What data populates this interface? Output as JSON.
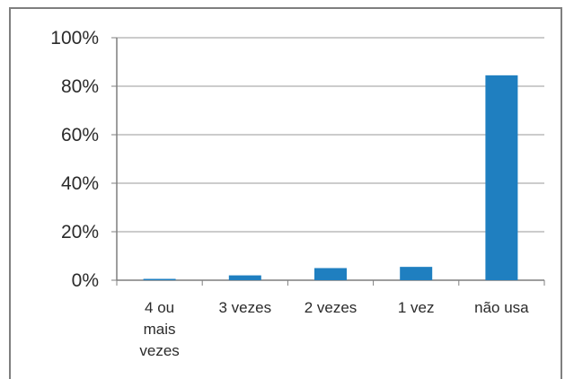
{
  "chart_data": {
    "type": "bar",
    "title": "",
    "xlabel": "",
    "ylabel": "",
    "categories": [
      [
        "4 ou",
        "mais",
        "vezes"
      ],
      [
        "3 vezes"
      ],
      [
        "2 vezes"
      ],
      [
        "1 vez"
      ],
      [
        "não usa"
      ]
    ],
    "values": [
      0.5,
      2,
      5,
      5.5,
      84.5
    ],
    "ylim": [
      0,
      100
    ],
    "yticks": [
      "0%",
      "20%",
      "40%",
      "60%",
      "80%",
      "100%"
    ],
    "bar_color": "#1f7fc0",
    "grid": true,
    "legend": "none"
  }
}
